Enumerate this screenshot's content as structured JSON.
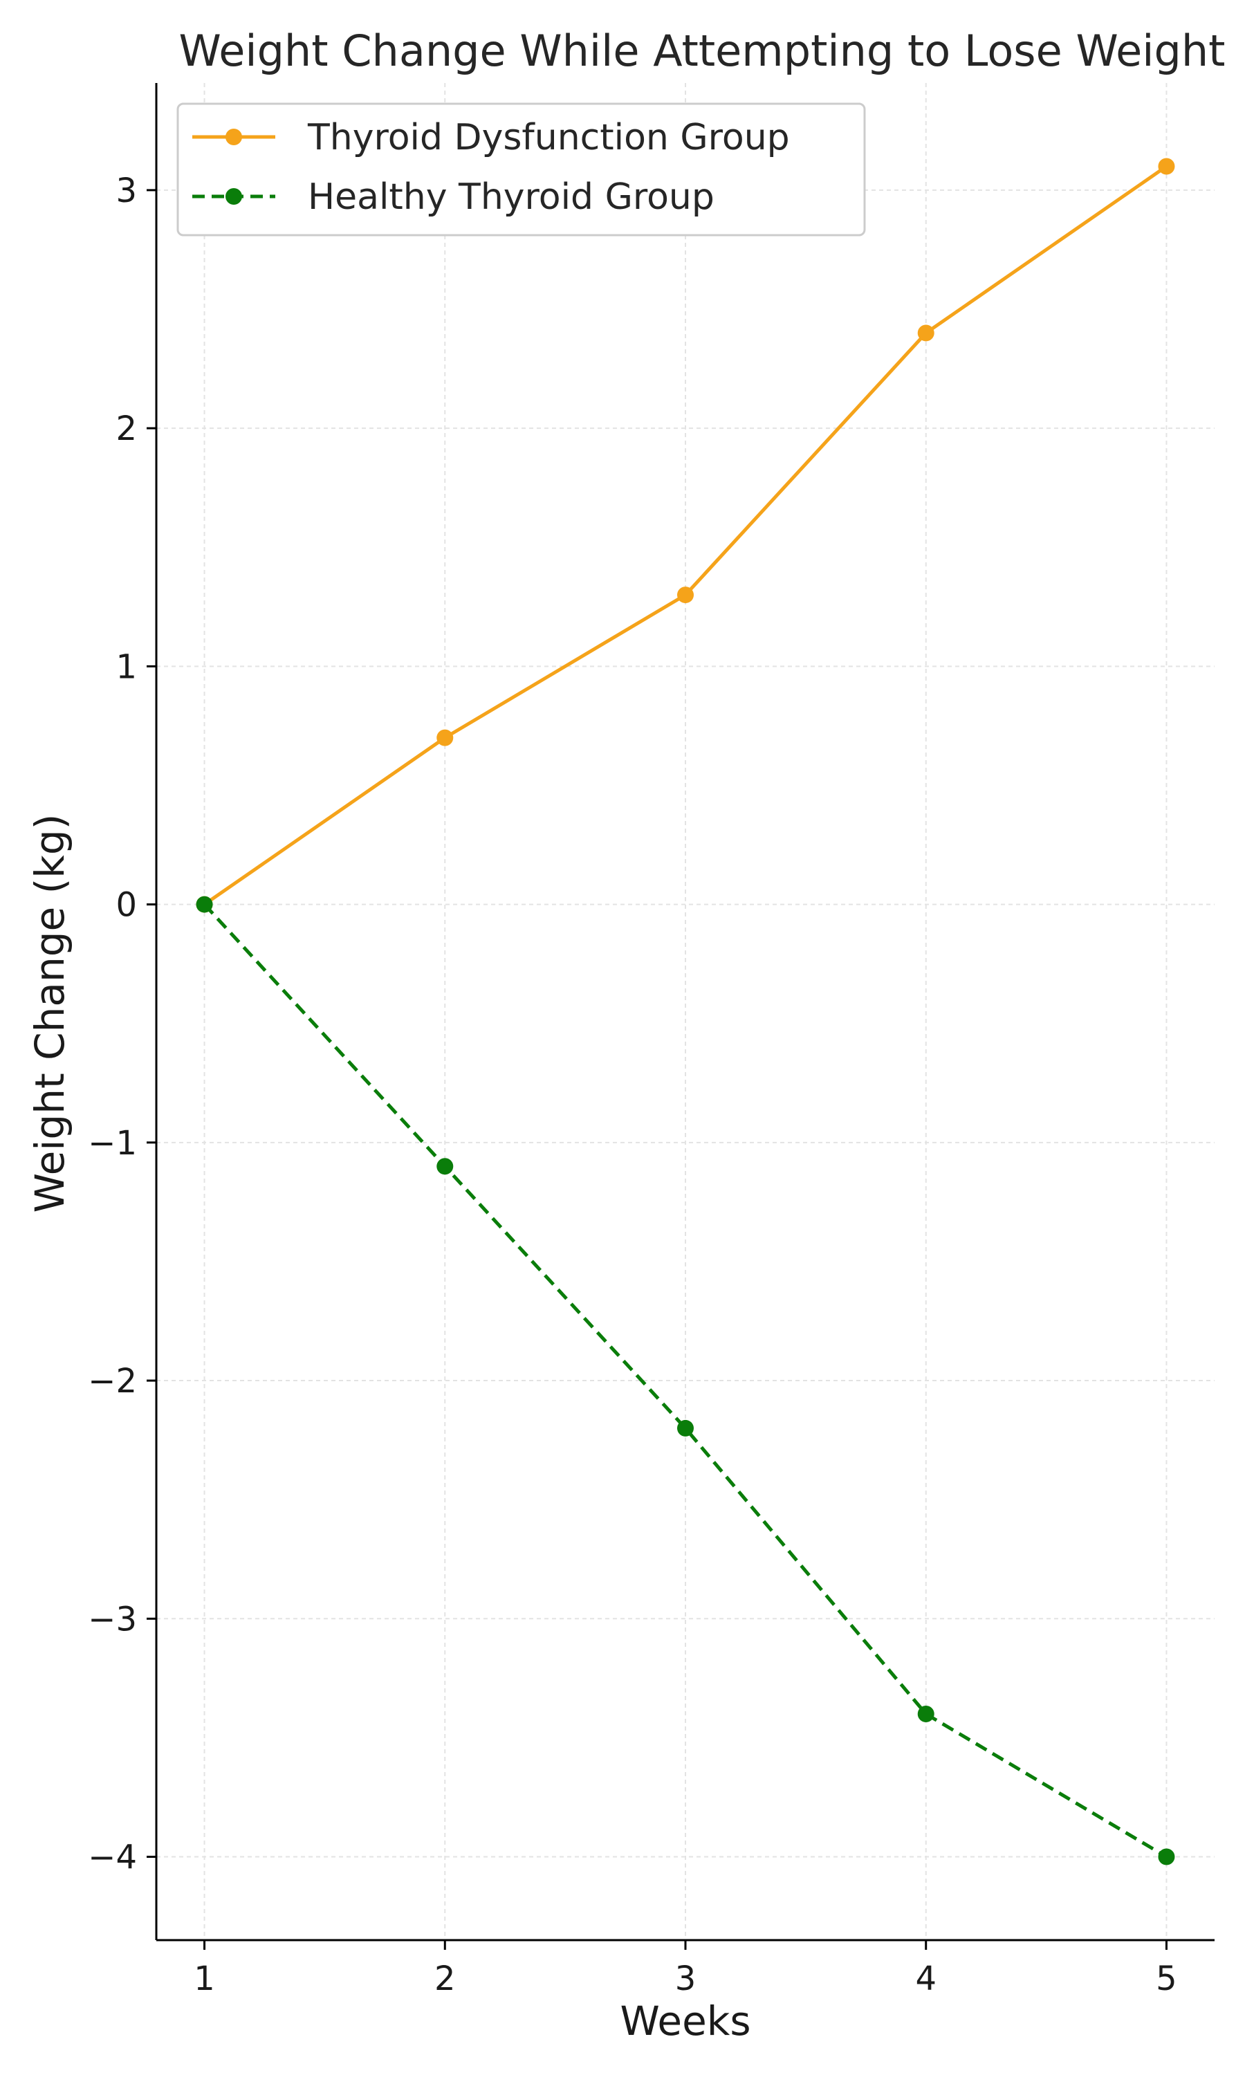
{
  "chart_data": {
    "type": "line",
    "title": "Weight Change While Attempting to Lose Weight",
    "xlabel": "Weeks",
    "ylabel": "Weight Change (kg)",
    "x": [
      1,
      2,
      3,
      4,
      5
    ],
    "xticks": [
      "1",
      "2",
      "3",
      "4",
      "5"
    ],
    "yticks": [
      3,
      2,
      1,
      0,
      -1,
      -2,
      -3,
      -4
    ],
    "ytick_labels": [
      "3",
      "2",
      "1",
      "0",
      "−1",
      "−2",
      "−3",
      "−4"
    ],
    "xlim": [
      0.8,
      5.2
    ],
    "ylim": [
      -4.35,
      3.45
    ],
    "grid": true,
    "legend_position": "top-left",
    "series": [
      {
        "name": "Thyroid Dysfunction Group",
        "values": [
          0,
          0.7,
          1.3,
          2.4,
          3.1
        ],
        "color": "#f5a31a",
        "line_style": "solid",
        "marker": "circle"
      },
      {
        "name": "Healthy Thyroid Group",
        "values": [
          0,
          -1.1,
          -2.2,
          -3.4,
          -4.0
        ],
        "color": "#0a7d0a",
        "line_style": "dashed",
        "marker": "circle"
      }
    ]
  }
}
